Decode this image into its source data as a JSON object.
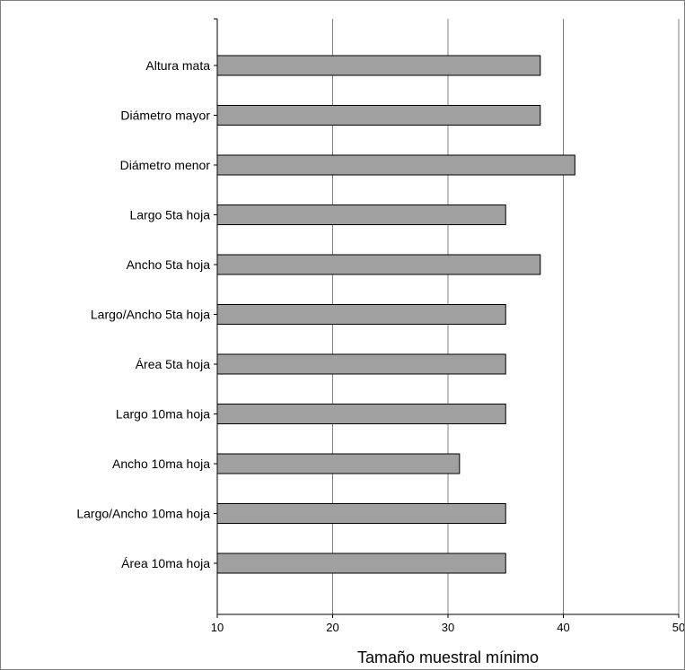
{
  "chart_data": {
    "type": "bar",
    "orientation": "horizontal",
    "categories": [
      "Altura mata",
      "Diámetro mayor",
      "Diámetro menor",
      "Largo 5ta hoja",
      "Ancho 5ta hoja",
      "Largo/Ancho 5ta hoja",
      "Área 5ta hoja",
      "Largo 10ma hoja",
      "Ancho 10ma hoja",
      "Largo/Ancho 10ma hoja",
      "Área 10ma hoja"
    ],
    "values": [
      38,
      38,
      41,
      35,
      38,
      35,
      35,
      35,
      31,
      35,
      35
    ],
    "xlabel": "Tamaño muestral mínimo",
    "ylabel": "",
    "xlim": [
      10,
      50
    ],
    "xticks": [
      "10",
      "20",
      "30",
      "40",
      "50"
    ],
    "grid": "vertical",
    "colors": {
      "bar_fill": "#a0a0a0",
      "bar_stroke": "#000000",
      "grid": "#808080",
      "axis": "#000000"
    }
  }
}
